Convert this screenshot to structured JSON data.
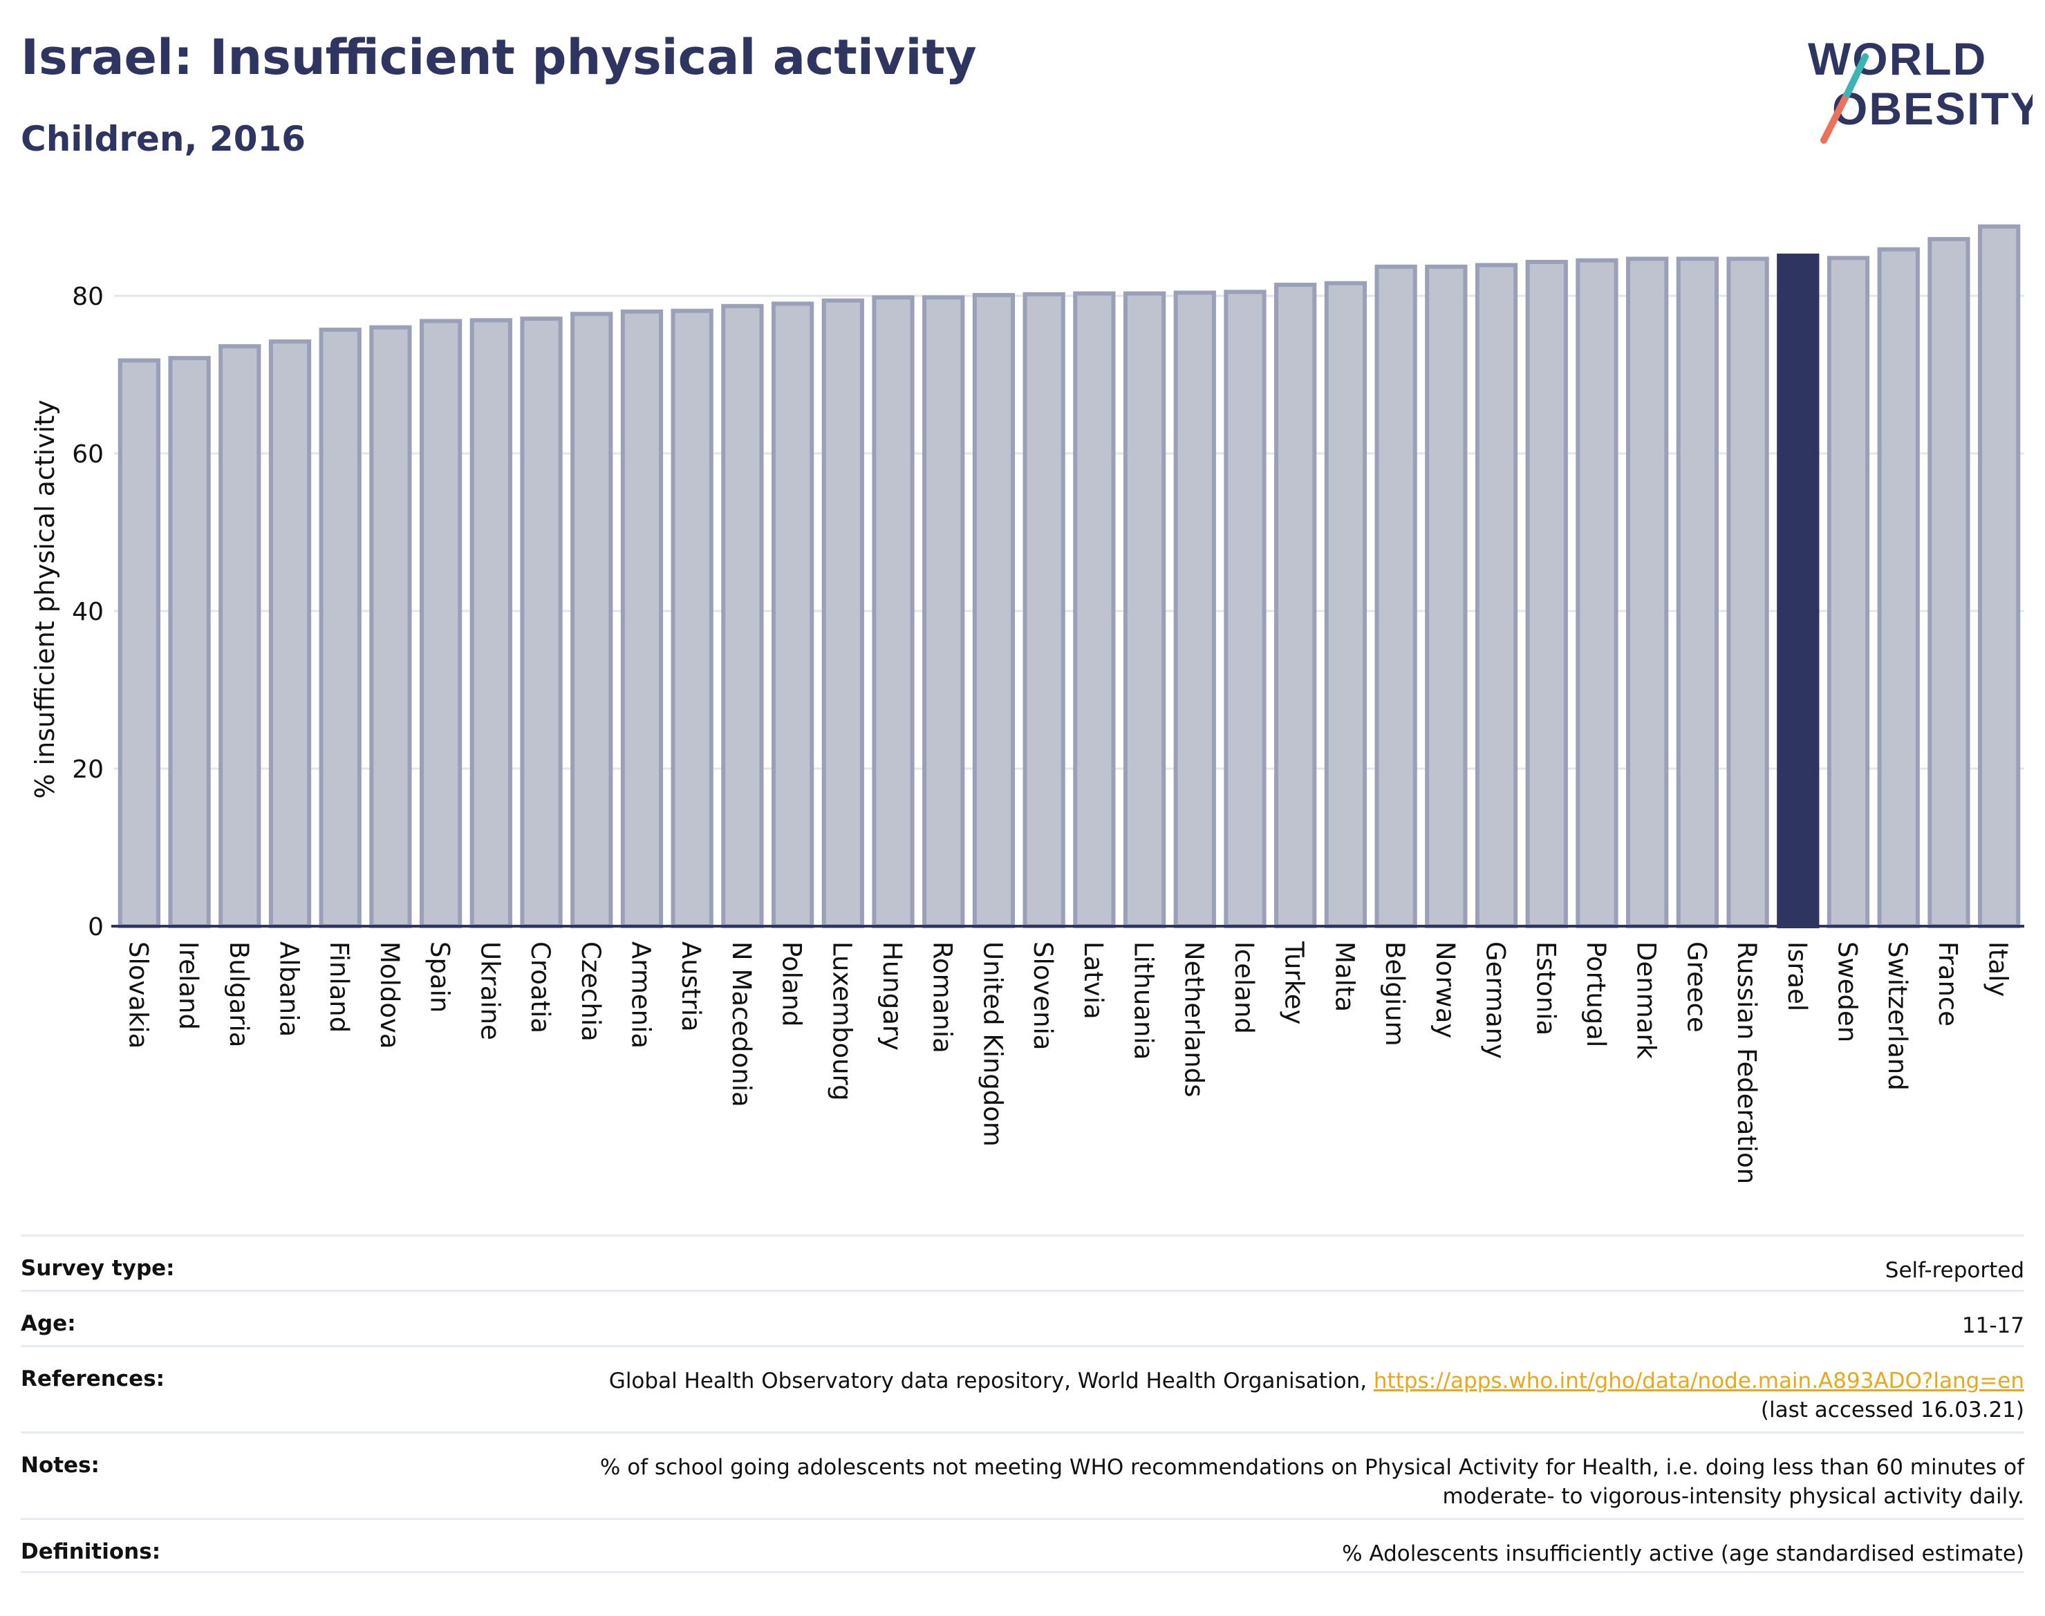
{
  "header": {
    "title": "Israel: Insufficient physical activity",
    "subtitle": "Children, 2016"
  },
  "logo": {
    "line1": "WORLD",
    "line2": "OBESITY"
  },
  "colors": {
    "bar_default": "#bfc3d0",
    "bar_border": "#9aa0b8",
    "bar_highlight": "#2d3560",
    "axis": "#2d3560",
    "grid": "#e3e6ed"
  },
  "chart_data": {
    "type": "bar",
    "ylabel": "% insufficient physical activity",
    "ylim": [
      0,
      90
    ],
    "yticks": [
      0,
      20,
      40,
      60,
      80
    ],
    "highlight": "Israel",
    "categories": [
      "Slovakia",
      "Ireland",
      "Bulgaria",
      "Albania",
      "Finland",
      "Moldova",
      "Spain",
      "Ukraine",
      "Croatia",
      "Czechia",
      "Armenia",
      "Austria",
      "N Macedonia",
      "Poland",
      "Luxembourg",
      "Hungary",
      "Romania",
      "United Kingdom",
      "Slovenia",
      "Latvia",
      "Lithuania",
      "Netherlands",
      "Iceland",
      "Turkey",
      "Malta",
      "Belgium",
      "Norway",
      "Germany",
      "Estonia",
      "Portugal",
      "Denmark",
      "Greece",
      "Russian Federation",
      "Israel",
      "Sweden",
      "Switzerland",
      "France",
      "Italy"
    ],
    "values": [
      71.8,
      72.1,
      73.6,
      74.2,
      75.7,
      76.0,
      76.8,
      76.9,
      77.1,
      77.7,
      78.0,
      78.1,
      78.7,
      79.0,
      79.4,
      79.8,
      79.8,
      80.1,
      80.2,
      80.3,
      80.3,
      80.4,
      80.5,
      81.4,
      81.6,
      83.7,
      83.7,
      83.9,
      84.3,
      84.5,
      84.7,
      84.7,
      84.7,
      85.1,
      84.8,
      85.9,
      87.2,
      88.8
    ]
  },
  "meta": {
    "survey_type": {
      "label": "Survey type:",
      "value": "Self-reported"
    },
    "age": {
      "label": "Age:",
      "value": "11-17"
    },
    "references": {
      "label": "References:",
      "text": "Global Health Observatory data repository, World Health Organisation, ",
      "link": "https://apps.who.int/gho/data/node.main.A893ADO?lang=en",
      "accessed": "(last accessed 16.03.21)"
    },
    "notes": {
      "label": "Notes:",
      "line1": "% of school going adolescents not meeting WHO recommendations on Physical Activity for Health, i.e. doing less than 60 minutes of",
      "line2": "moderate- to vigorous-intensity physical activity daily."
    },
    "definitions": {
      "label": "Definitions:",
      "value": "% Adolescents insufficiently active (age standardised estimate)"
    }
  }
}
